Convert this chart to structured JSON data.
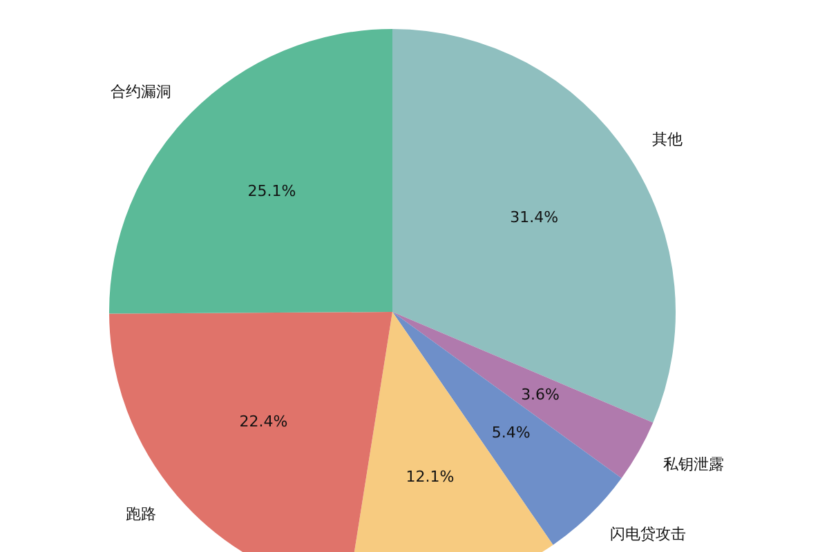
{
  "chart_data": {
    "type": "pie",
    "categories": [
      "其他",
      "私钥泄露",
      "闪电贷攻击",
      null,
      "跑路",
      "合约漏洞"
    ],
    "values": [
      31.4,
      3.6,
      5.4,
      12.1,
      22.4,
      25.1
    ],
    "colors": [
      "#8fbfbf",
      "#b07aad",
      "#6e8fc9",
      "#f7cb80",
      "#e0736a",
      "#5bba98"
    ],
    "value_labels": [
      "31.4%",
      "3.6%",
      "5.4%",
      "12.1%",
      "22.4%",
      "25.1%"
    ],
    "legend": false
  }
}
